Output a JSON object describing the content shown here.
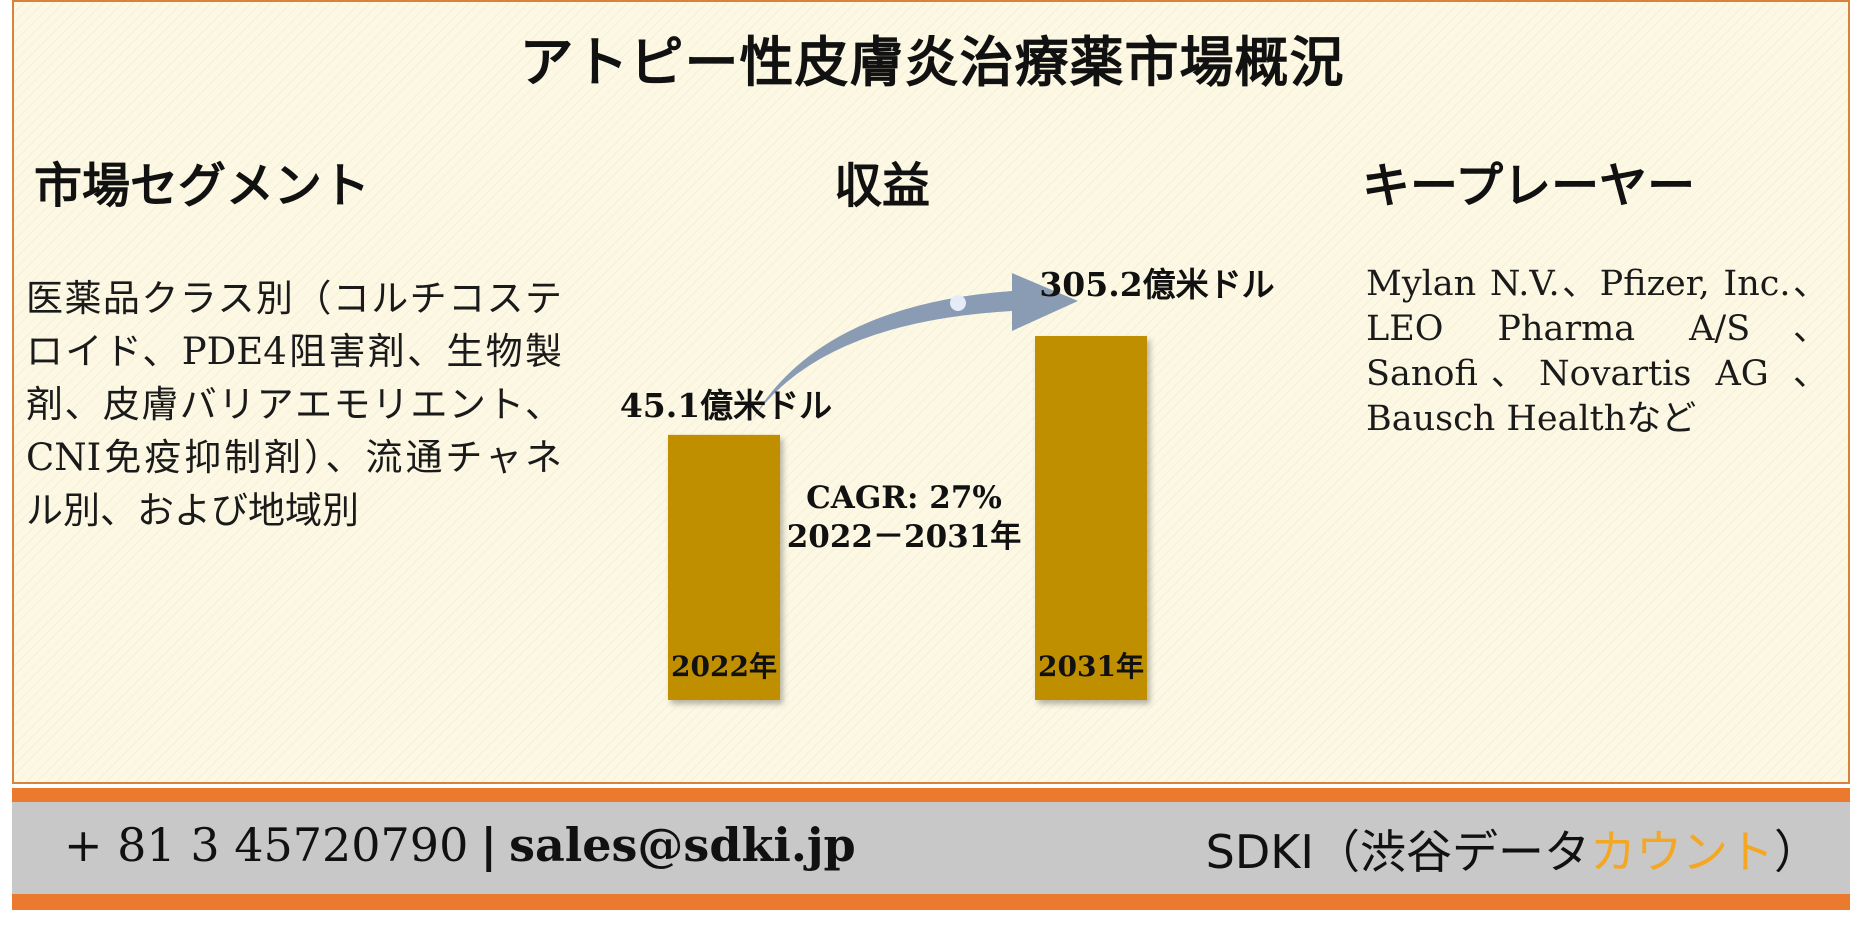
{
  "title": "アトピー性皮膚炎治療薬市場概況",
  "sections": {
    "segment": {
      "heading": "市場セグメント",
      "text": "医薬品クラス別（コルチコステロイド、PDE4阻害剤、生物製剤、皮膚バリアエモリエント、CNI免疫抑制剤）、流通チャネル別、および地域別"
    },
    "revenue": {
      "heading": "収益"
    },
    "players": {
      "heading": "キープレーヤー",
      "text": "Mylan N.V.、Pfizer, Inc.、LEO Pharma A/S、Sanofi、Novartis AG 、 Bausch Healthなど"
    }
  },
  "chart_data": {
    "type": "bar",
    "categories": [
      "2022年",
      "2031年"
    ],
    "values": [
      45.1,
      305.2
    ],
    "value_labels": [
      "45.1億米ドル",
      "305.2億米ドル"
    ],
    "unit": "億米ドル",
    "cagr_label": "CAGR: 27%",
    "period_label": "2022－2031年",
    "colors": {
      "bar": "#bf8f00",
      "arrow": "#8a9bb4"
    }
  },
  "footer": {
    "phone": "+ 81 3 45720790",
    "separator": "|",
    "email": "sales@sdki.jp",
    "brand_main": "SDKI（渋谷データ",
    "brand_accent": "カウント",
    "brand_close": "）"
  },
  "colors": {
    "accent_orange": "#ec7a2e",
    "brand_accent": "#f5a623",
    "panel_bg": "#fcf8e4"
  }
}
